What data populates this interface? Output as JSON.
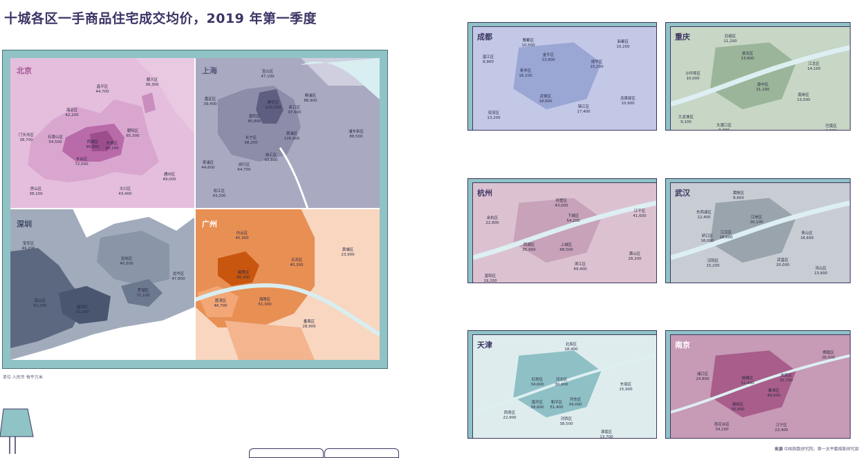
{
  "title": "十城各区一手商品住宅成交均价，2019 年第一季度",
  "unit_note": "单位 人民币 每平方米",
  "source": {
    "label": "来源",
    "text": "中国指数研究院、第一太平戴维斯研究部"
  },
  "colors": {
    "frame_teal": "#8fc3c6",
    "navy": "#3c3560",
    "beijing": "#d9a6cf",
    "shanghai": "#a9a9c2",
    "shenzhen": "#7d889c",
    "guangzhou": "#e88f54",
    "chengdu": "#9aa6d4",
    "chongqing": "#9bb59a",
    "hangzhou": "#c7a2b8",
    "wuhan": "#9aa4ac",
    "tianjin": "#8ec0c6",
    "nanjing": "#a85d8a"
  },
  "maps": {
    "beijing": {
      "name": "北京",
      "districts": [
        {
          "name": "顺义区",
          "price": "36,300"
        },
        {
          "name": "昌平区",
          "price": "44,700"
        },
        {
          "name": "海淀区",
          "price": "42,200"
        },
        {
          "name": "朝阳区",
          "price": "65,300"
        },
        {
          "name": "门头沟区",
          "price": "38,700"
        },
        {
          "name": "石景山区",
          "price": "54,500"
        },
        {
          "name": "西城区",
          "price": "99,800"
        },
        {
          "name": "东城区",
          "price": "90,100"
        },
        {
          "name": "丰台区",
          "price": "72,000"
        },
        {
          "name": "通州区",
          "price": "49,000"
        },
        {
          "name": "房山区",
          "price": "38,100"
        },
        {
          "name": "大兴区",
          "price": "43,400"
        }
      ]
    },
    "shanghai": {
      "name": "上海",
      "districts": [
        {
          "name": "宝山区",
          "price": "47,100"
        },
        {
          "name": "嘉定区",
          "price": "39,400"
        },
        {
          "name": "杨浦区",
          "price": "88,900"
        },
        {
          "name": "静安区",
          "price": "120,200"
        },
        {
          "name": "虹口区",
          "price": "97,600"
        },
        {
          "name": "普陀区",
          "price": "80,800"
        },
        {
          "name": "黄浦区",
          "price": "126,900"
        },
        {
          "name": "浦东新区",
          "price": "88,500"
        },
        {
          "name": "长宁区",
          "price": "98,200"
        },
        {
          "name": "徐汇区",
          "price": "93,800"
        },
        {
          "name": "青浦区",
          "price": "44,600"
        },
        {
          "name": "闵行区",
          "price": "64,700"
        },
        {
          "name": "松江区",
          "price": "43,200"
        }
      ]
    },
    "shenzhen": {
      "name": "深圳",
      "districts": [
        {
          "name": "宝安区",
          "price": "49,200"
        },
        {
          "name": "龙岗区",
          "price": "40,500"
        },
        {
          "name": "龙华区",
          "price": "47,800"
        },
        {
          "name": "南山区",
          "price": "62,200"
        },
        {
          "name": "罗湖区",
          "price": "71,100"
        },
        {
          "name": "福田区",
          "price": "32,900"
        }
      ]
    },
    "guangzhou": {
      "name": "广州",
      "districts": [
        {
          "name": "白云区",
          "price": "45,300"
        },
        {
          "name": "天河区",
          "price": "45,300"
        },
        {
          "name": "黄埔区",
          "price": "23,900"
        },
        {
          "name": "越秀区",
          "price": "65,300"
        },
        {
          "name": "荔湾区",
          "price": "46,700"
        },
        {
          "name": "海珠区",
          "price": "51,300"
        },
        {
          "name": "番禺区",
          "price": "28,900"
        }
      ]
    },
    "chengdu": {
      "name": "成都",
      "districts": [
        {
          "name": "郫都区",
          "price": "10,500"
        },
        {
          "name": "新都区",
          "price": "10,200"
        },
        {
          "name": "温江区",
          "price": "8,900"
        },
        {
          "name": "金牛区",
          "price": "13,900"
        },
        {
          "name": "成华区",
          "price": "15,200"
        },
        {
          "name": "青羊区",
          "price": "16,100"
        },
        {
          "name": "武侯区",
          "price": "18,600"
        },
        {
          "name": "锦江区",
          "price": "17,400"
        },
        {
          "name": "龙泉驿区",
          "price": "10,900"
        },
        {
          "name": "双流区",
          "price": "13,200"
        }
      ]
    },
    "chongqing": {
      "name": "重庆",
      "districts": [
        {
          "name": "北碚区",
          "price": "11,200"
        },
        {
          "name": "渝北区",
          "price": "13,600"
        },
        {
          "name": "沙坪坝区",
          "price": "10,000"
        },
        {
          "name": "江北区",
          "price": "14,100"
        },
        {
          "name": "渝中区",
          "price": "21,100"
        },
        {
          "name": "南岸区",
          "price": "13,500"
        },
        {
          "name": "九龙坡区",
          "price": "9,100"
        },
        {
          "name": "大渡口区",
          "price": "9,200"
        },
        {
          "name": "巴南区",
          "price": "9,900"
        }
      ]
    },
    "hangzhou": {
      "name": "杭州",
      "districts": [
        {
          "name": "拱墅区",
          "price": "43,000"
        },
        {
          "name": "余杭区",
          "price": "22,800"
        },
        {
          "name": "下城区",
          "price": "54,200"
        },
        {
          "name": "江干区",
          "price": "41,600"
        },
        {
          "name": "西湖区",
          "price": "35,900"
        },
        {
          "name": "上城区",
          "price": "68,500"
        },
        {
          "name": "滨江区",
          "price": "49,400"
        },
        {
          "name": "萧山区",
          "price": "28,200"
        },
        {
          "name": "富阳区",
          "price": "19,200"
        }
      ]
    },
    "wuhan": {
      "name": "武汉",
      "districts": [
        {
          "name": "黄陂区",
          "price": "8,600"
        },
        {
          "name": "东西湖区",
          "price": "12,400"
        },
        {
          "name": "江岸区",
          "price": "16,100"
        },
        {
          "name": "硚口区",
          "price": "16,000"
        },
        {
          "name": "江汉区",
          "price": "18,600"
        },
        {
          "name": "青山区",
          "price": "16,600"
        },
        {
          "name": "汉阳区",
          "price": "15,200"
        },
        {
          "name": "武昌区",
          "price": "20,000"
        },
        {
          "name": "洪山区",
          "price": "13,900"
        }
      ]
    },
    "tianjin": {
      "name": "天津",
      "districts": [
        {
          "name": "北辰区",
          "price": "18,400"
        },
        {
          "name": "红桥区",
          "price": "34,600"
        },
        {
          "name": "河北区",
          "price": "30,900"
        },
        {
          "name": "东丽区",
          "price": "15,900"
        },
        {
          "name": "南开区",
          "price": "38,600"
        },
        {
          "name": "和平区",
          "price": "51,400"
        },
        {
          "name": "河东区",
          "price": "34,000"
        },
        {
          "name": "西青区",
          "price": "22,900"
        },
        {
          "name": "河西区",
          "price": "38,500"
        },
        {
          "name": "津南区",
          "price": "13,700"
        }
      ]
    },
    "nanjing": {
      "name": "南京",
      "districts": [
        {
          "name": "栖霞区",
          "price": "26,500"
        },
        {
          "name": "浦口区",
          "price": "24,800"
        },
        {
          "name": "鼓楼区",
          "price": "52,400"
        },
        {
          "name": "玄武区",
          "price": "32,700"
        },
        {
          "name": "秦淮区",
          "price": "48,900"
        },
        {
          "name": "建邺区",
          "price": "30,900"
        },
        {
          "name": "雨花台区",
          "price": "34,100"
        },
        {
          "name": "江宁区",
          "price": "23,400"
        }
      ]
    }
  }
}
